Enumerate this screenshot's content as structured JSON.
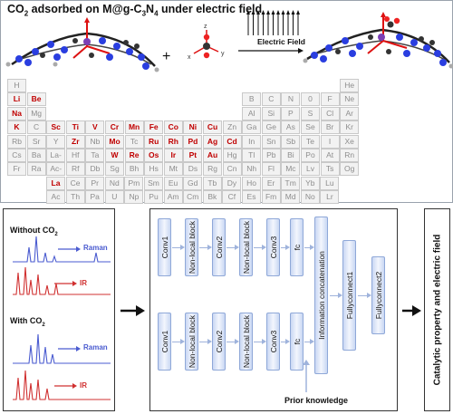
{
  "title": {
    "text": "CO",
    "sub": "2",
    "rest": " adsorbed on M@g-C",
    "sub2": "3",
    "n": "N",
    "sub3": "4",
    "tail": " under electric field"
  },
  "reaction": {
    "plus": "+",
    "field_label": "Electric Field",
    "axes": [
      "z",
      "y",
      "x"
    ]
  },
  "periodic_table": {
    "main_rows": [
      [
        "H",
        "",
        "",
        "",
        "",
        "",
        "",
        "",
        "",
        "",
        "",
        "",
        "",
        "",
        "",
        "",
        "",
        "He"
      ],
      [
        "Li",
        "Be",
        "",
        "",
        "",
        "",
        "",
        "",
        "",
        "",
        "",
        "",
        "B",
        "C",
        "N",
        "0",
        "F",
        "Ne"
      ],
      [
        "Na",
        "Mg",
        "",
        "",
        "",
        "",
        "",
        "",
        "",
        "",
        "",
        "",
        "Al",
        "Si",
        "P",
        "S",
        "Cl",
        "Ar"
      ],
      [
        "K",
        "C",
        "Sc",
        "Ti",
        "V",
        "Cr",
        "Mn",
        "Fe",
        "Co",
        "Ni",
        "Cu",
        "Zn",
        "Ga",
        "Ge",
        "As",
        "Se",
        "Br",
        "Kr"
      ],
      [
        "Rb",
        "Sr",
        "Y",
        "Zr",
        "Nb",
        "Mo",
        "Tc",
        "Ru",
        "Rh",
        "Pd",
        "Ag",
        "Cd",
        "In",
        "Sn",
        "Sb",
        "Te",
        "I",
        "Xe"
      ],
      [
        "Cs",
        "Ba",
        "La-Lu",
        "Hf",
        "Ta",
        "W",
        "Re",
        "Os",
        "Ir",
        "Pt",
        "Au",
        "Hg",
        "Tl",
        "Pb",
        "Bi",
        "Po",
        "At",
        "Rn"
      ],
      [
        "Fr",
        "Ra",
        "Ac-Lr",
        "Rf",
        "Db",
        "Sg",
        "Bh",
        "Hs",
        "Mt",
        "Ds",
        "Rg",
        "Cn",
        "Nh",
        "Fl",
        "Mc",
        "Lv",
        "Ts",
        "Og"
      ]
    ],
    "f_rows": [
      [
        "La",
        "Ce",
        "Pr",
        "Nd",
        "Pm",
        "Sm",
        "Eu",
        "Gd",
        "Tb",
        "Dy",
        "Ho",
        "Er",
        "Tm",
        "Yb",
        "Lu"
      ],
      [
        "Ac",
        "Th",
        "Pa",
        "U",
        "Np",
        "Pu",
        "Am",
        "Cm",
        "Bk",
        "Cf",
        "Es",
        "Fm",
        "Md",
        "No",
        "Lr"
      ]
    ],
    "highlighted": [
      "Li",
      "Be",
      "Na",
      "K",
      "Sc",
      "Ti",
      "V",
      "Cr",
      "Mn",
      "Fe",
      "Co",
      "Ni",
      "Cu",
      "Zr",
      "Mo",
      "Ru",
      "Rh",
      "Pd",
      "Ag",
      "Cd",
      "W",
      "Re",
      "Os",
      "Ir",
      "Pt",
      "Au",
      "La"
    ],
    "highlight_color": "#c00000"
  },
  "spectra": {
    "without_label": "Without CO",
    "without_sub": "2",
    "with_label": "With CO",
    "with_sub": "2",
    "raman_label": "Raman",
    "ir_label": "IR",
    "raman_color": "#4a5bd0",
    "ir_color": "#d03030"
  },
  "network": {
    "top_row": [
      "Conv1",
      "Non-local block",
      "Conv2",
      "Non-local block",
      "Conv3",
      "fc"
    ],
    "bottom_row": [
      "Conv1",
      "Non-local block",
      "Conv2",
      "Non-local block",
      "Conv3",
      "fc"
    ],
    "concat": "Information concatenation",
    "fc1": "Fullyconnect1",
    "fc2": "Fullyconnect2",
    "prior": "Prior knowledge"
  },
  "output_label": "Catalytic property and electric field"
}
